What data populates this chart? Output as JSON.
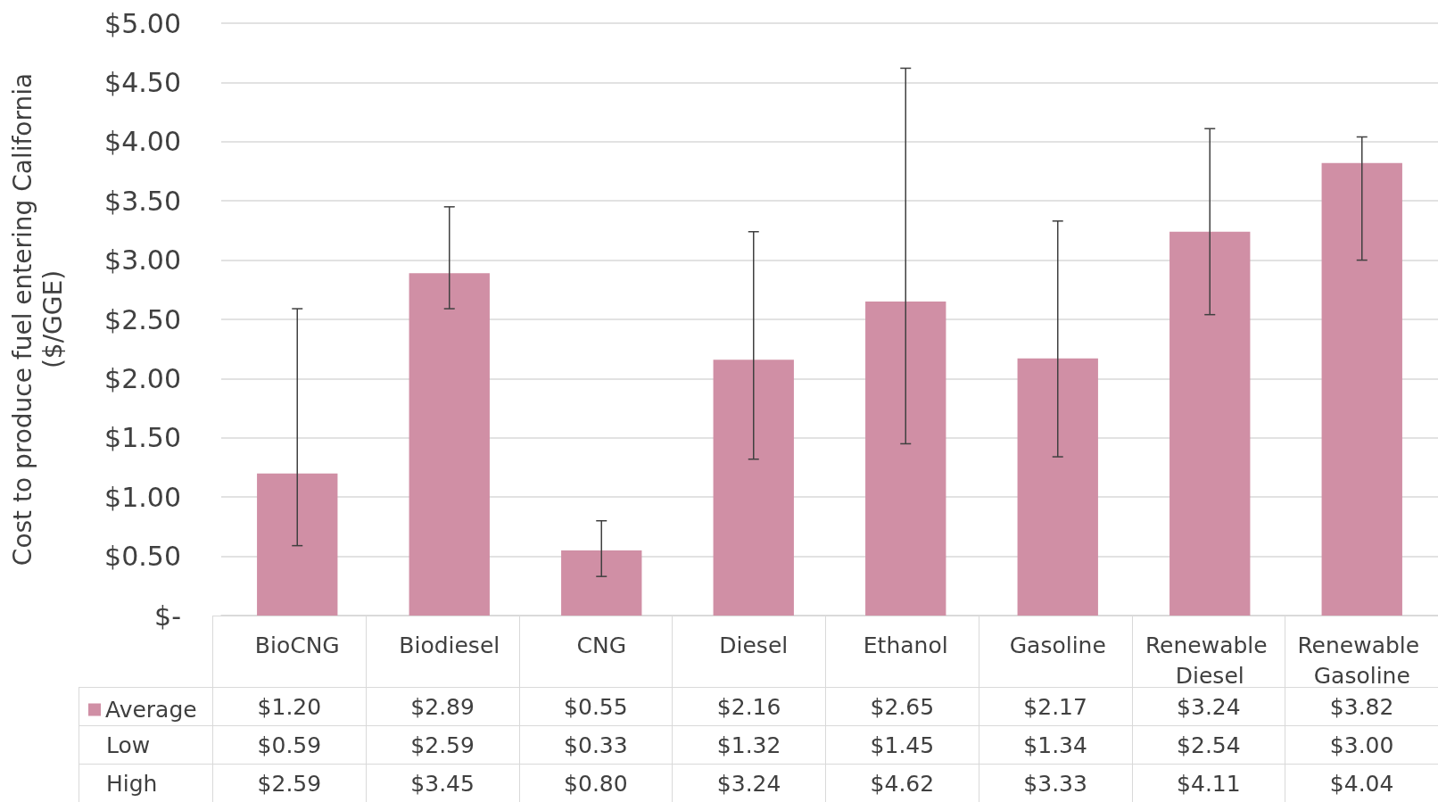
{
  "chart_data": {
    "type": "bar",
    "ylabel": "Cost to produce fuel entering California\n($/GGE)",
    "categories": [
      "BioCNG",
      "Biodiesel",
      "CNG",
      "Diesel",
      "Ethanol",
      "Gasoline",
      "Renewable Diesel",
      "Renewable Gasoline"
    ],
    "series": [
      {
        "name": "Average",
        "color": "#d08fa5",
        "values": [
          1.2,
          2.89,
          0.55,
          2.16,
          2.65,
          2.17,
          3.24,
          3.82
        ],
        "value_labels": [
          "$1.20",
          "$2.89",
          "$0.55",
          "$2.16",
          "$2.65",
          "$2.17",
          "$3.24",
          "$3.82"
        ],
        "errors": [
          [
            0.59,
            2.59
          ],
          [
            2.59,
            3.45
          ],
          [
            0.33,
            0.8
          ],
          [
            1.32,
            3.24
          ],
          [
            1.45,
            4.62
          ],
          [
            1.34,
            3.33
          ],
          [
            2.54,
            4.11
          ],
          [
            3.0,
            4.04
          ]
        ]
      }
    ],
    "ylim": [
      0,
      5
    ],
    "yticks": [
      {
        "value": 0,
        "label": "$-"
      },
      {
        "value": 0.5,
        "label": "$0.50"
      },
      {
        "value": 1,
        "label": "$1.00"
      },
      {
        "value": 1.5,
        "label": "$1.50"
      },
      {
        "value": 2,
        "label": "$2.00"
      },
      {
        "value": 2.5,
        "label": "$2.50"
      },
      {
        "value": 3,
        "label": "$3.00"
      },
      {
        "value": 3.5,
        "label": "$3.50"
      },
      {
        "value": 4,
        "label": "$4.00"
      },
      {
        "value": 4.5,
        "label": "$4.50"
      },
      {
        "value": 5,
        "label": "$5.00"
      }
    ],
    "grid": "y",
    "legend": "bottom left",
    "annotations": [
      "Low",
      "High",
      "$0.59",
      "$2.59",
      "$0.33",
      "$1.32",
      "$1.45",
      "$1.34",
      "$2.54",
      "$3.00",
      "$2.59",
      "$3.45",
      "$0.80",
      "$3.24",
      "$4.62",
      "$3.33",
      "$4.11",
      "$4.04"
    ]
  }
}
